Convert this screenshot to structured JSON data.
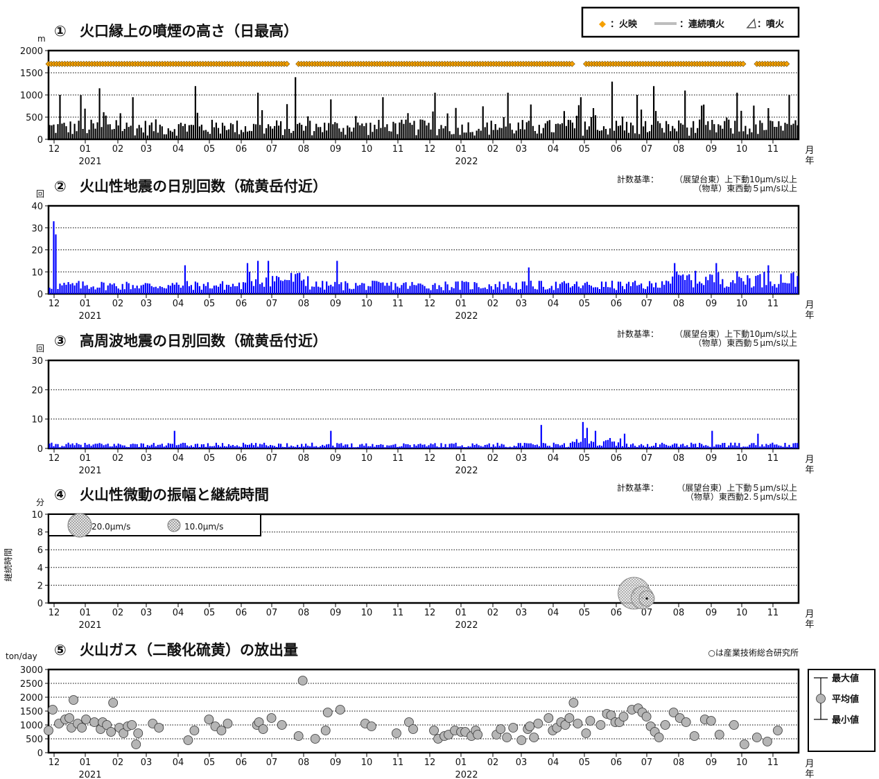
{
  "x_axis": {
    "month_ticks": [
      "12",
      "01",
      "02",
      "03",
      "04",
      "05",
      "06",
      "07",
      "08",
      "09",
      "10",
      "11",
      "12",
      "01",
      "02",
      "03",
      "04",
      "05",
      "06",
      "07",
      "08",
      "09",
      "10",
      "11"
    ],
    "year_labels": [
      "2021",
      "2022"
    ],
    "unit_month": "月",
    "unit_year": "年"
  },
  "legend_top": {
    "items": [
      {
        "symbol": "◆",
        "label": "：火映",
        "color": "#f5a000"
      },
      {
        "symbol": "line",
        "label": "：連続噴火",
        "color": "#bdbdbd"
      },
      {
        "symbol": "△",
        "label": "：噴火",
        "color": "#555555"
      }
    ]
  },
  "chart_data": [
    {
      "type": "bar",
      "panel_label": "①",
      "title": "火口縁上の噴煙の高さ（日最高）",
      "ylabel": "m",
      "ylim": [
        0,
        2000
      ],
      "yticks": [
        "0",
        "500",
        "1000",
        "1500",
        "2000"
      ],
      "x_range": [
        "2020-12-01",
        "2021-11-30"
      ],
      "series": [
        {
          "kind": "daily_bars",
          "color": "#000000",
          "spikes": [
            [
              5,
              1000
            ],
            [
              15,
              1000
            ],
            [
              24,
              1150
            ],
            [
              40,
              950
            ],
            [
              70,
              1200
            ],
            [
              100,
              1050
            ],
            [
              118,
              1400
            ],
            [
              135,
              900
            ],
            [
              160,
              950
            ],
            [
              185,
              1050
            ],
            [
              220,
              1050
            ],
            [
              255,
              950
            ],
            [
              270,
              1300
            ],
            [
              282,
              1000
            ],
            [
              290,
              1200
            ],
            [
              305,
              1100
            ],
            [
              330,
              1050
            ],
            [
              355,
              1000
            ]
          ]
        },
        {
          "kind": "glow_markers",
          "color": "#f5a000",
          "y": 1700,
          "segments": [
            [
              0,
              115
            ],
            [
              120,
              252
            ],
            [
              258,
              334
            ],
            [
              340,
              355
            ]
          ]
        }
      ]
    },
    {
      "type": "bar",
      "panel_label": "②",
      "title": "火山性地震の日別回数（硫黄岳付近）",
      "ylabel": "回",
      "ylim": [
        0,
        40
      ],
      "yticks": [
        "0",
        "10",
        "20",
        "30",
        "40"
      ],
      "series": [
        {
          "kind": "daily_bars",
          "color": "#0000ff",
          "spikes": [
            [
              2,
              33
            ],
            [
              3,
              27
            ],
            [
              65,
              13
            ],
            [
              95,
              14
            ],
            [
              100,
              15
            ],
            [
              105,
              15
            ],
            [
              138,
              15
            ],
            [
              230,
              12
            ],
            [
              300,
              14
            ],
            [
              320,
              14
            ],
            [
              345,
              13
            ]
          ]
        }
      ],
      "criteria_label": "計数基準：",
      "criteria_lines": [
        "（展望台東）上下動10μm/s以上",
        "（物草）東西動５μm/s以上"
      ]
    },
    {
      "type": "bar",
      "panel_label": "③",
      "title": "高周波地震の日別回数（硫黄岳付近）",
      "ylabel": "回",
      "ylim": [
        0,
        30
      ],
      "yticks": [
        "0",
        "10",
        "20",
        "30"
      ],
      "series": [
        {
          "kind": "daily_bars",
          "color": "#0000ff",
          "spikes": [
            [
              60,
              6
            ],
            [
              135,
              6
            ],
            [
              236,
              8
            ],
            [
              256,
              9
            ],
            [
              258,
              7
            ],
            [
              262,
              6
            ],
            [
              276,
              5
            ],
            [
              318,
              6
            ],
            [
              340,
              5
            ]
          ]
        }
      ],
      "criteria_label": "計数基準：",
      "criteria_lines": [
        "（展望台東）上下動10μm/s以上",
        "（物草）東西動５μm/s以上"
      ]
    },
    {
      "type": "scatter",
      "panel_label": "④",
      "title": "火山性微動の振幅と継続時間",
      "ylabel": "分",
      "side_label": "継続時間",
      "ylim": [
        0,
        10
      ],
      "yticks": [
        "0",
        "2",
        "4",
        "6",
        "8",
        "10"
      ],
      "points": [
        {
          "date": "2021-09-08",
          "duration": 1.1,
          "amplitude": 27
        },
        {
          "date": "2021-09-12",
          "duration": 0.6,
          "amplitude": 19
        },
        {
          "date": "2022-07-01",
          "duration": 0.5,
          "amplitude": 13
        }
      ],
      "size_legend": [
        {
          "label": "20.0μm/s",
          "amplitude": 20.0
        },
        {
          "label": "10.0μm/s",
          "amplitude": 10.0
        }
      ],
      "criteria_label": "計数基準：",
      "criteria_lines": [
        "（展望台東）上下動５μm/s以上",
        "（物草）東西動2.５μm/s以上"
      ]
    },
    {
      "type": "scatter",
      "panel_label": "⑤",
      "title": "火山ガス（二酸化硫黄）の放出量",
      "ylabel": "ton/day",
      "ylim": [
        0,
        3000
      ],
      "yticks": [
        "0",
        "500",
        "1000",
        "1500",
        "2000",
        "2500",
        "3000"
      ],
      "note": "○は産業技術総合研究所",
      "legend": [
        "最大値",
        "平均値",
        "最小値"
      ],
      "points": [
        [
          0,
          800
        ],
        [
          2,
          1550
        ],
        [
          5,
          1050
        ],
        [
          8,
          1200
        ],
        [
          10,
          1250
        ],
        [
          11,
          900
        ],
        [
          12,
          1900
        ],
        [
          14,
          1050
        ],
        [
          16,
          900
        ],
        [
          18,
          1200
        ],
        [
          22,
          1100
        ],
        [
          25,
          850
        ],
        [
          26,
          1100
        ],
        [
          28,
          1000
        ],
        [
          30,
          750
        ],
        [
          31,
          1800
        ],
        [
          34,
          900
        ],
        [
          36,
          700
        ],
        [
          38,
          950
        ],
        [
          40,
          1000
        ],
        [
          42,
          300
        ],
        [
          43,
          700
        ],
        [
          50,
          1050
        ],
        [
          53,
          900
        ],
        [
          67,
          450
        ],
        [
          70,
          800
        ],
        [
          77,
          1200
        ],
        [
          80,
          950
        ],
        [
          83,
          800
        ],
        [
          86,
          1050
        ],
        [
          100,
          1000
        ],
        [
          101,
          1100
        ],
        [
          103,
          850
        ],
        [
          107,
          1250
        ],
        [
          112,
          1000
        ],
        [
          120,
          600
        ],
        [
          122,
          2600
        ],
        [
          128,
          500
        ],
        [
          133,
          800
        ],
        [
          134,
          1450
        ],
        [
          140,
          1550
        ],
        [
          152,
          1050
        ],
        [
          155,
          950
        ],
        [
          167,
          700
        ],
        [
          173,
          1100
        ],
        [
          175,
          850
        ],
        [
          185,
          800
        ],
        [
          187,
          500
        ],
        [
          190,
          600
        ],
        [
          192,
          650
        ],
        [
          195,
          800
        ],
        [
          198,
          750
        ],
        [
          200,
          750
        ],
        [
          203,
          600
        ],
        [
          205,
          800
        ],
        [
          206,
          650
        ],
        [
          215,
          650
        ],
        [
          217,
          850
        ],
        [
          220,
          550
        ],
        [
          223,
          900
        ],
        [
          227,
          450
        ],
        [
          230,
          850
        ],
        [
          231,
          950
        ],
        [
          233,
          550
        ],
        [
          235,
          1050
        ],
        [
          240,
          1250
        ],
        [
          242,
          800
        ],
        [
          244,
          900
        ],
        [
          246,
          1100
        ],
        [
          248,
          1000
        ],
        [
          250,
          1250
        ],
        [
          252,
          1800
        ],
        [
          254,
          1050
        ],
        [
          258,
          700
        ],
        [
          260,
          1150
        ],
        [
          265,
          1000
        ],
        [
          268,
          1400
        ],
        [
          270,
          1350
        ],
        [
          272,
          1100
        ],
        [
          274,
          1100
        ],
        [
          276,
          1300
        ],
        [
          280,
          1550
        ],
        [
          283,
          1600
        ],
        [
          285,
          1450
        ],
        [
          287,
          1300
        ],
        [
          289,
          950
        ],
        [
          291,
          750
        ],
        [
          293,
          550
        ],
        [
          296,
          1000
        ],
        [
          300,
          1450
        ],
        [
          303,
          1250
        ],
        [
          306,
          1100
        ],
        [
          310,
          600
        ],
        [
          315,
          1200
        ],
        [
          318,
          1150
        ],
        [
          322,
          650
        ],
        [
          329,
          1000
        ],
        [
          334,
          300
        ],
        [
          340,
          550
        ],
        [
          345,
          400
        ],
        [
          350,
          800
        ]
      ]
    }
  ]
}
